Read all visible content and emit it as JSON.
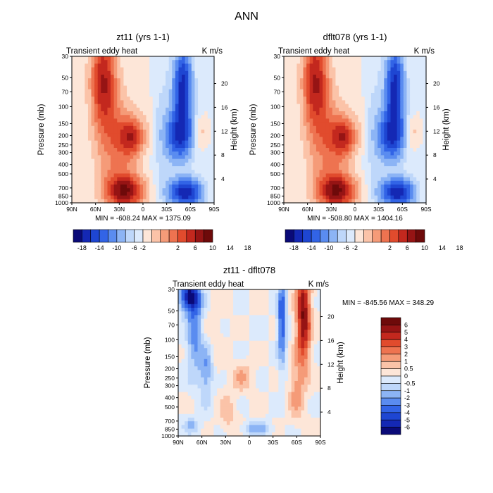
{
  "page_title": "ANN",
  "chart_data": [
    {
      "type": "heatmap",
      "title": "zt11 (yrs 1-1)",
      "subtitle_left": "Transient eddy heat",
      "subtitle_right": "K m/s",
      "ylabel": "Pressure (mb)",
      "ylabel_right": "Height (km)",
      "x_ticks": [
        "90N",
        "60N",
        "30N",
        "0",
        "30S",
        "60S",
        "90S"
      ],
      "y_ticks": [
        "30",
        "50",
        "70",
        "100",
        "150",
        "200",
        "250",
        "300",
        "400",
        "500",
        "700",
        "850",
        "1000"
      ],
      "y_right_ticks": [
        "20",
        "16",
        "12",
        "8",
        "4"
      ],
      "stats": "MIN = -608.24   MAX = 1375.09",
      "colorbar_labels": [
        "-18",
        "-14",
        "-10",
        "-6",
        "-2",
        "2",
        "6",
        "10",
        "14",
        "18"
      ]
    },
    {
      "type": "heatmap",
      "title": "dflt078 (yrs 1-1)",
      "subtitle_left": "Transient eddy heat",
      "subtitle_right": "K m/s",
      "ylabel": "Pressure (mb)",
      "ylabel_right": "Height (km)",
      "x_ticks": [
        "90N",
        "60N",
        "30N",
        "0",
        "30S",
        "60S",
        "90S"
      ],
      "y_ticks": [
        "30",
        "50",
        "70",
        "100",
        "150",
        "200",
        "250",
        "300",
        "400",
        "500",
        "700",
        "850",
        "1000"
      ],
      "y_right_ticks": [
        "20",
        "16",
        "12",
        "8",
        "4"
      ],
      "stats": "MIN = -508.80   MAX = 1404.16",
      "colorbar_labels": [
        "-18",
        "-14",
        "-10",
        "-6",
        "-2",
        "2",
        "6",
        "10",
        "14",
        "18"
      ]
    },
    {
      "type": "heatmap",
      "title": "zt11 - dflt078",
      "subtitle_left": "Transient eddy heat",
      "subtitle_right": "K m/s",
      "ylabel": "Pressure (mb)",
      "ylabel_right": "Height (km)",
      "x_ticks": [
        "90N",
        "60N",
        "30N",
        "0",
        "30S",
        "60S",
        "90S"
      ],
      "y_ticks": [
        "30",
        "50",
        "70",
        "100",
        "150",
        "200",
        "250",
        "300",
        "400",
        "500",
        "700",
        "850",
        "1000"
      ],
      "y_right_ticks": [
        "20",
        "16",
        "12",
        "8",
        "4"
      ],
      "stats": "MIN = -845.56   MAX = 348.29",
      "colorbar_labels": [
        "6",
        "5",
        "4",
        "3",
        "2",
        "1",
        "0.5",
        "0",
        "-0.5",
        "-1",
        "-2",
        "-3",
        "-4",
        "-5",
        "-6"
      ]
    }
  ],
  "palette": [
    "#0a0a78",
    "#1428b4",
    "#1e46d2",
    "#3264e6",
    "#5a8cf0",
    "#8cb4f5",
    "#bed7fa",
    "#dceafc",
    "#fde6d8",
    "#fbc3a8",
    "#f59b78",
    "#ee7350",
    "#e14b2d",
    "#c3281e",
    "#961414",
    "#6e0a0a"
  ]
}
